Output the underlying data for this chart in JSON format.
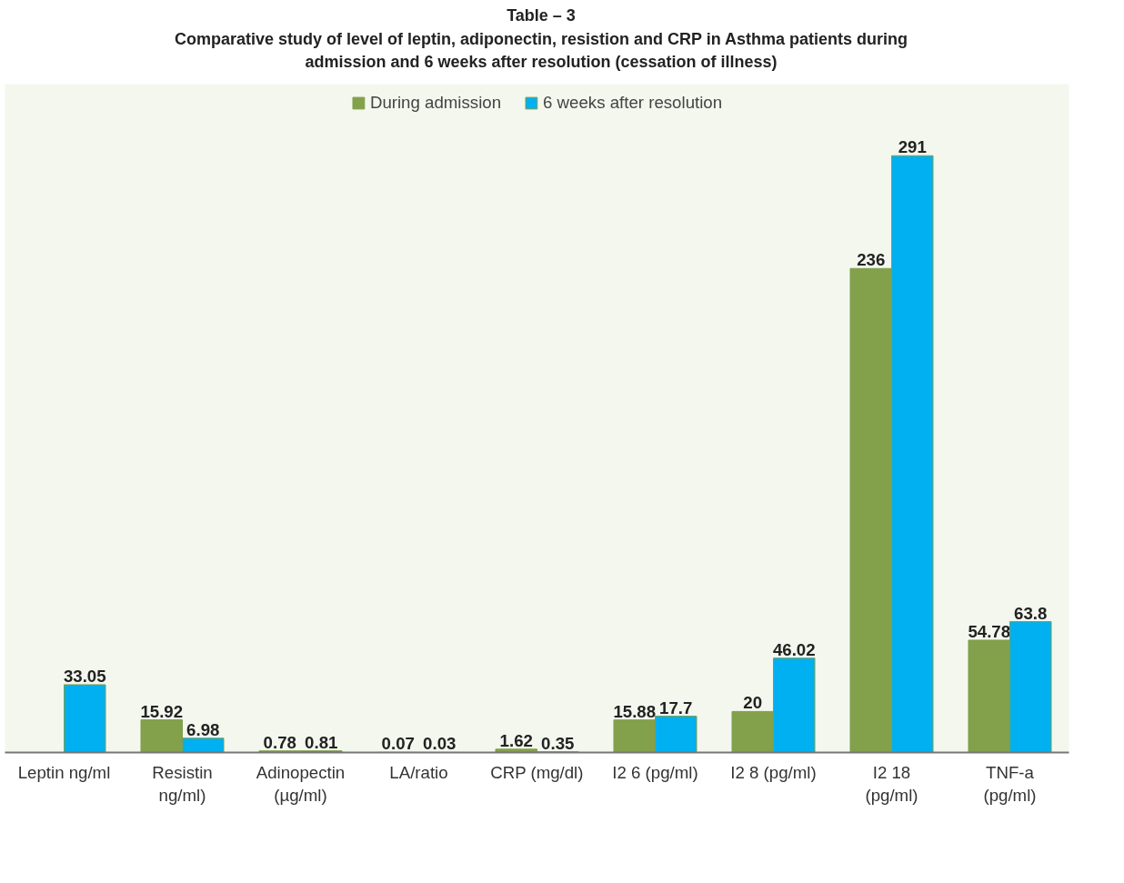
{
  "chart_data": {
    "type": "bar",
    "title": "Table – 3",
    "subtitle": "Comparative study of level of leptin, adiponectin, resistion and CRP in Asthma patients during admission and 6 weeks after resolution (cessation of illness)",
    "categories": [
      "Leptin ng/ml",
      "Resistin ng/ml)",
      "Adinopectin (µg/ml)",
      "LA/ratio",
      "CRP (mg/dl)",
      "I2 6 (pg/ml)",
      "I2 8 (pg/ml)",
      "I2 18 (pg/ml)",
      "TNF-a (pg/ml)"
    ],
    "series": [
      {
        "name": "During admission",
        "color": "#83a04b",
        "values": [
          null,
          15.92,
          0.78,
          0.07,
          1.62,
          15.88,
          20,
          236,
          54.78
        ],
        "value_labels": [
          null,
          "15.92",
          "0.78",
          "0.07",
          "1.62",
          "15.88",
          "20",
          "236",
          "54.78"
        ]
      },
      {
        "name": "6 weeks after resolution",
        "color": "#00b0f0",
        "values": [
          33.05,
          6.98,
          0.81,
          0.03,
          0.35,
          17.7,
          46.02,
          291,
          63.8
        ],
        "value_labels": [
          "33.05",
          "6.98",
          "0.81",
          "0.03",
          "0.35",
          "17.7",
          "46.02",
          "291",
          "63.8"
        ]
      }
    ],
    "legend": "top",
    "grid": false
  }
}
